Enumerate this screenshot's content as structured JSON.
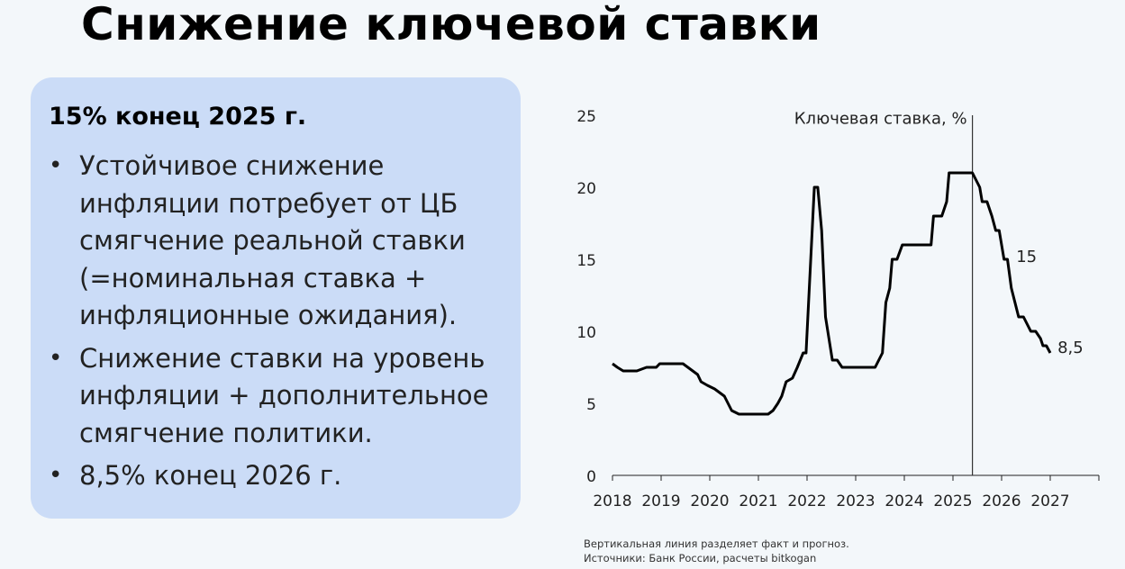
{
  "title": "Снижение ключевой ставки",
  "card": {
    "heading": "15% конец 2025 г.",
    "bullets": [
      "Устойчивое снижение инфляции потребует от ЦБ смягчение реальной ставки (=номинальная ставка + инфляционные ожидания).",
      "Снижение ставки на уровень инфляции + дополнительное смягчение политики.",
      "8,5% конец 2026 г."
    ],
    "bullet_symbol": "•"
  },
  "chart_data": {
    "type": "line",
    "title": "",
    "xlabel": "",
    "ylabel": "",
    "xlim": [
      2018,
      2028
    ],
    "ylim": [
      0,
      25
    ],
    "yticks": [
      "0",
      "5",
      "10",
      "15",
      "20",
      "25"
    ],
    "xticks": [
      "2018",
      "2019",
      "2020",
      "2021",
      "2022",
      "2023",
      "2024",
      "2025",
      "2026",
      "2027"
    ],
    "series": [
      {
        "name": "Ключевая ставка, %",
        "color": "#000000",
        "points": [
          [
            2018.0,
            7.75
          ],
          [
            2018.1,
            7.5
          ],
          [
            2018.22,
            7.25
          ],
          [
            2018.5,
            7.25
          ],
          [
            2018.7,
            7.5
          ],
          [
            2018.9,
            7.5
          ],
          [
            2018.97,
            7.75
          ],
          [
            2019.45,
            7.75
          ],
          [
            2019.55,
            7.5
          ],
          [
            2019.65,
            7.25
          ],
          [
            2019.75,
            7.0
          ],
          [
            2019.82,
            6.5
          ],
          [
            2019.95,
            6.25
          ],
          [
            2020.1,
            6.0
          ],
          [
            2020.3,
            5.5
          ],
          [
            2020.45,
            4.5
          ],
          [
            2020.6,
            4.25
          ],
          [
            2021.2,
            4.25
          ],
          [
            2021.3,
            4.5
          ],
          [
            2021.4,
            5.0
          ],
          [
            2021.48,
            5.5
          ],
          [
            2021.57,
            6.5
          ],
          [
            2021.7,
            6.75
          ],
          [
            2021.8,
            7.5
          ],
          [
            2021.92,
            8.5
          ],
          [
            2021.98,
            8.5
          ],
          [
            2022.15,
            20
          ],
          [
            2022.22,
            20
          ],
          [
            2022.3,
            17
          ],
          [
            2022.38,
            11
          ],
          [
            2022.52,
            8
          ],
          [
            2022.62,
            8
          ],
          [
            2022.72,
            7.5
          ],
          [
            2023.4,
            7.5
          ],
          [
            2023.55,
            8.5
          ],
          [
            2023.62,
            12
          ],
          [
            2023.7,
            13
          ],
          [
            2023.75,
            15
          ],
          [
            2023.85,
            15
          ],
          [
            2023.96,
            16
          ],
          [
            2024.55,
            16
          ],
          [
            2024.6,
            18
          ],
          [
            2024.77,
            18
          ],
          [
            2024.87,
            19
          ],
          [
            2024.92,
            21
          ],
          [
            2025.4,
            21
          ],
          [
            2025.55,
            20
          ],
          [
            2025.6,
            19
          ],
          [
            2025.7,
            19
          ],
          [
            2025.8,
            18
          ],
          [
            2025.88,
            17
          ],
          [
            2025.95,
            17
          ],
          [
            2026.05,
            15
          ],
          [
            2026.12,
            15
          ],
          [
            2026.2,
            13
          ],
          [
            2026.35,
            11
          ],
          [
            2026.45,
            11
          ],
          [
            2026.6,
            10
          ],
          [
            2026.7,
            10
          ],
          [
            2026.8,
            9.5
          ],
          [
            2026.85,
            9
          ],
          [
            2026.92,
            9
          ],
          [
            2027.0,
            8.5
          ]
        ]
      }
    ],
    "annotations": [
      {
        "text": "Ключевая ставка, %",
        "x": 2025.4,
        "y": 24.4,
        "anchor": "end"
      },
      {
        "text": "15",
        "x": 2026.3,
        "y": 14.8,
        "anchor": "start"
      },
      {
        "text": "8,5",
        "x": 2027.15,
        "y": 8.5,
        "anchor": "start"
      }
    ],
    "vline": {
      "x": 2025.4
    },
    "grid": false,
    "legend": "none"
  },
  "footnote": {
    "line1": "Вертикальная линия разделяет факт и прогноз.",
    "line2": "Источники: Банк России, расчеты bitkogan"
  }
}
